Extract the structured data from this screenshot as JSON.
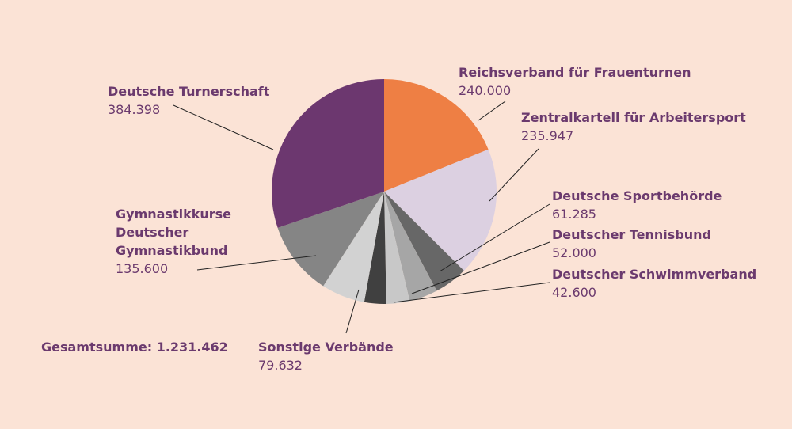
{
  "chart_data": {
    "type": "pie",
    "slices": [
      {
        "label": "Reichsverband für Frauenturnen",
        "value_label": "240.000",
        "value": 240000,
        "color": "#ee7f44"
      },
      {
        "label": "Zentralkartell für Arbeitersport",
        "value_label": "235.947",
        "value": 235947,
        "color": "#dcd0e1"
      },
      {
        "label": "Deutsche Sportbehörde",
        "value_label": "61.285",
        "value": 61285,
        "color": "#676767"
      },
      {
        "label": "Deutscher Tennisbund",
        "value_label": "52.000",
        "value": 52000,
        "color": "#a6a6a6"
      },
      {
        "label": "Deutscher Schwimmverband",
        "value_label": "42.600",
        "value": 42600,
        "color": "#c8c8c8"
      },
      {
        "label": "",
        "value_label": "",
        "value": 40000,
        "color": "#404040"
      },
      {
        "label": "Sonstige Verbände",
        "value_label": "79.632",
        "value": 79632,
        "color": "#d2d2d2"
      },
      {
        "label": "Gymnastikkurse\nDeutscher\nGymnastikbund",
        "value_label": "135.600",
        "value": 135600,
        "color": "#858585"
      },
      {
        "label": "Deutsche Turnerschaft",
        "value_label": "384.398",
        "value": 384398,
        "color": "#6c376f"
      }
    ],
    "total_label": "Gesamtsumme: 1.231.462",
    "total": 1231462,
    "start_angle_deg": 0,
    "direction": "clockwise"
  }
}
